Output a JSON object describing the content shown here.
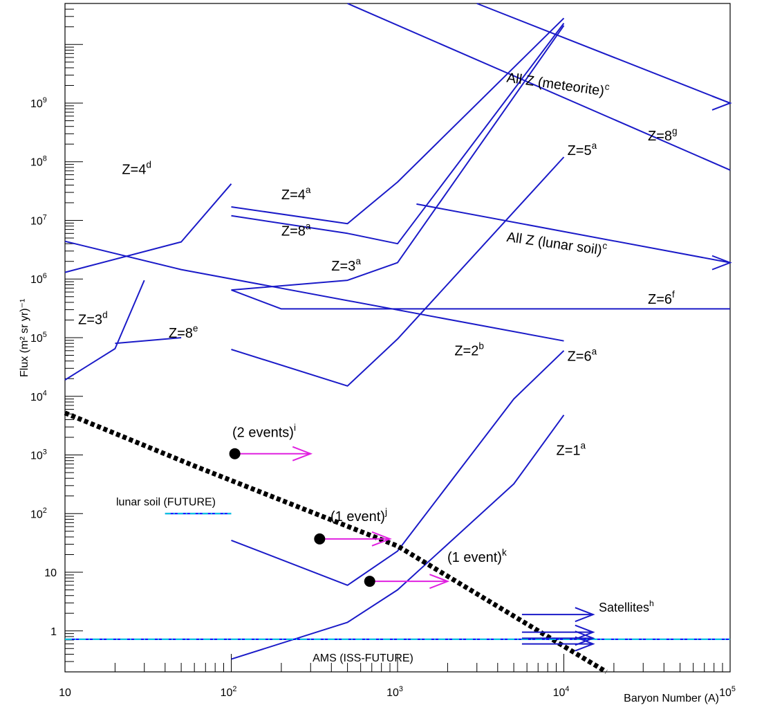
{
  "chart_data": {
    "type": "line",
    "title": "",
    "xlabel": "Baryon Number (A)",
    "ylabel": "Flux (m² sr yr)⁻¹",
    "x_scale": "log",
    "y_scale": "log",
    "xlim": [
      10,
      100000
    ],
    "ylim": [
      0.2,
      50000000000
    ],
    "x_ticks": [
      {
        "value": 10,
        "label": "10"
      },
      {
        "value": 100,
        "label": "10^2"
      },
      {
        "value": 1000,
        "label": "10^3"
      },
      {
        "value": 10000,
        "label": "10^4"
      },
      {
        "value": 100000,
        "label": "10^5"
      }
    ],
    "y_ticks": [
      {
        "value": 1,
        "label": "1"
      },
      {
        "value": 10,
        "label": "10"
      },
      {
        "value": 100,
        "label": "10^2"
      },
      {
        "value": 1000,
        "label": "10^3"
      },
      {
        "value": 10000,
        "label": "10^4"
      },
      {
        "value": 100000,
        "label": "10^5"
      },
      {
        "value": 1000000,
        "label": "10^6"
      },
      {
        "value": 10000000,
        "label": "10^7"
      },
      {
        "value": 100000000,
        "label": "10^8"
      },
      {
        "value": 1000000000,
        "label": "10^9"
      }
    ],
    "series": [
      {
        "name": "Z=4^d",
        "color": "#1a1ac8",
        "points": [
          [
            10,
            1300000
          ],
          [
            50,
            4300000
          ],
          [
            100,
            42000000
          ]
        ]
      },
      {
        "name": "Z=4^a",
        "color": "#1a1ac8",
        "points": [
          [
            100,
            17000000
          ],
          [
            500,
            8800000
          ],
          [
            1000,
            45000000
          ],
          [
            10000,
            28000000000
          ]
        ]
      },
      {
        "name": "Z=8^a",
        "color": "#1a1ac8",
        "points": [
          [
            100,
            12000000
          ],
          [
            500,
            6000000
          ],
          [
            1000,
            4000000
          ],
          [
            10000,
            23000000000
          ]
        ]
      },
      {
        "name": "Z=3^a",
        "color": "#1a1ac8",
        "points": [
          [
            100,
            650000
          ],
          [
            500,
            950000
          ],
          [
            1000,
            1900000
          ],
          [
            10000,
            21000000000
          ]
        ]
      },
      {
        "name": "Z=6^f",
        "color": "#1a1ac8",
        "points": [
          [
            100,
            650000
          ],
          [
            200,
            310000
          ],
          [
            100000,
            310000
          ]
        ]
      },
      {
        "name": "Z=2^b",
        "color": "#1a1ac8",
        "points": [
          [
            10,
            4400000
          ],
          [
            50,
            1450000
          ],
          [
            10000,
            88000
          ]
        ]
      },
      {
        "name": "Z=5^a",
        "color": "#1a1ac8",
        "points": [
          [
            100,
            63000
          ],
          [
            500,
            15000
          ],
          [
            1000,
            95000
          ],
          [
            10000,
            120000000
          ]
        ]
      },
      {
        "name": "Z=6^a",
        "color": "#1a1ac8",
        "points": [
          [
            100,
            35
          ],
          [
            500,
            6
          ],
          [
            1000,
            23
          ],
          [
            5000,
            9000
          ],
          [
            10000,
            60000
          ]
        ]
      },
      {
        "name": "Z=1^a",
        "color": "#1a1ac8",
        "points": [
          [
            100,
            0.33
          ],
          [
            500,
            1.4
          ],
          [
            1000,
            5
          ],
          [
            5000,
            320
          ],
          [
            10000,
            4800
          ]
        ]
      },
      {
        "name": "Z=3^d",
        "color": "#1a1ac8",
        "points": [
          [
            10,
            19000
          ],
          [
            20,
            65000
          ],
          [
            30,
            950000
          ]
        ]
      },
      {
        "name": "Z=8^e",
        "color": "#1a1ac8",
        "points": [
          [
            20,
            80000
          ],
          [
            50,
            100000
          ]
        ]
      },
      {
        "name": "All Z (meteorite)^c",
        "color": "#1a1ac8",
        "points": [
          [
            3000,
            50000000000
          ],
          [
            100000,
            1000000000
          ]
        ]
      },
      {
        "name": "Z=8^g",
        "color": "#1a1ac8",
        "points": [
          [
            500,
            50000000000
          ],
          [
            100000,
            72000000
          ]
        ]
      },
      {
        "name": "All Z (lunar soil)^c",
        "color": "#1a1ac8",
        "points": [
          [
            1300,
            19000000
          ],
          [
            100000,
            1900000
          ]
        ]
      },
      {
        "name": "",
        "color": "#000000",
        "style": "dashed-thick",
        "points": [
          [
            10,
            5200
          ],
          [
            60,
            650
          ],
          [
            1000,
            28
          ],
          [
            18000,
            0.2
          ]
        ]
      }
    ],
    "arrows": [
      {
        "label": "All Z (meteorite)^c",
        "x_end": 100000,
        "y": 1000000000
      },
      {
        "label": "All Z (lunar soil)^c",
        "x_end": 100000,
        "y": 1900000
      }
    ],
    "events": [
      {
        "label": "(2 events)^i",
        "x": 105,
        "y": 1050,
        "arrow_to": 300
      },
      {
        "label": "(1 event)^j",
        "x": 340,
        "y": 37,
        "arrow_to": 900
      },
      {
        "label": "(1 event)^k",
        "x": 680,
        "y": 7,
        "arrow_to": 2000
      }
    ],
    "satellites": {
      "label": "Satellites^h",
      "x_start": 5600,
      "x_end": 15000,
      "y_values": [
        1.9,
        0.95,
        0.75,
        0.6
      ]
    },
    "future_limits": [
      {
        "label": "lunar soil (FUTURE)",
        "x_start": 40,
        "x_end": 100,
        "y": 100
      },
      {
        "label": "AMS (ISS-FUTURE)",
        "x_start": 10,
        "x_end": 100000,
        "y": 0.72
      }
    ],
    "labels": [
      {
        "text": "Z=4",
        "sup": "d",
        "x": 22,
        "y": 62000000
      },
      {
        "text": "Z=4",
        "sup": "a",
        "x": 200,
        "y": 23000000
      },
      {
        "text": "Z=8",
        "sup": "a",
        "x": 200,
        "y": 5500000
      },
      {
        "text": "Z=3",
        "sup": "a",
        "x": 400,
        "y": 1400000
      },
      {
        "text": "Z=3",
        "sup": "d",
        "x": 12,
        "y": 170000
      },
      {
        "text": "Z=8",
        "sup": "e",
        "x": 42,
        "y": 100000
      },
      {
        "text": "Z=5",
        "sup": "a",
        "x": 10500,
        "y": 130000000
      },
      {
        "text": "Z=8",
        "sup": "g",
        "x": 32000,
        "y": 230000000
      },
      {
        "text": "Z=6",
        "sup": "f",
        "x": 32000,
        "y": 380000
      },
      {
        "text": "Z=2",
        "sup": "b",
        "x": 2200,
        "y": 50000
      },
      {
        "text": "Z=6",
        "sup": "a",
        "x": 10500,
        "y": 40000
      },
      {
        "text": "Z=1",
        "sup": "a",
        "x": 9000,
        "y": 1000
      },
      {
        "text": "All Z (meteorite)",
        "sup": "c",
        "x": 4500,
        "y": 2300000000
      },
      {
        "text": "All Z (lunar soil)",
        "sup": "c",
        "x": 4500,
        "y": 4400000
      }
    ],
    "grid": false,
    "legend": "none"
  },
  "colors": {
    "series": "#1a1ac8",
    "events": "#e020e0",
    "future_lunar": "#0000ff",
    "future_ams": "#00ccdd",
    "axis": "#000000"
  }
}
